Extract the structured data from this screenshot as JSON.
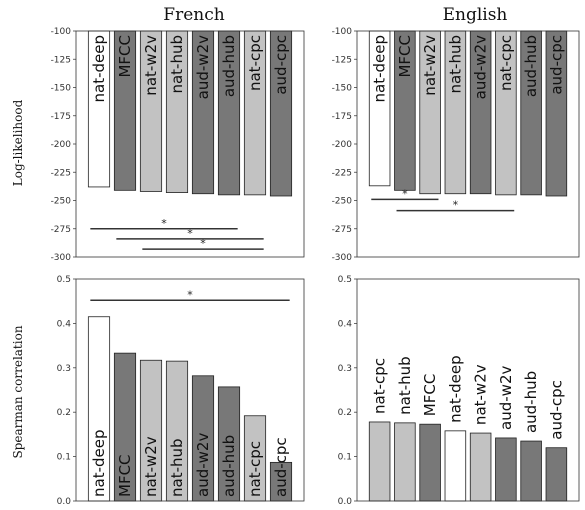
{
  "colors": {
    "white": "#ffffff",
    "light": "#c2c2c2",
    "dark": "#787878",
    "edge": "#222222",
    "sig": "#333333"
  },
  "chart_data": [
    {
      "type": "bar",
      "title": "French",
      "ylabel": "Log-likelihood",
      "ylim": [
        -300,
        -100
      ],
      "yticks": [
        "-100",
        "-125",
        "-150",
        "-175",
        "-200",
        "-225",
        "-250",
        "-275",
        "-300"
      ],
      "categories": [
        "nat-deep",
        "MFCC",
        "nat-w2v",
        "nat-hub",
        "aud-w2v",
        "aud-hub",
        "nat-cpc",
        "aud-cpc"
      ],
      "values": [
        -238,
        -241,
        -242,
        -243,
        -244,
        -245,
        -245,
        -246
      ],
      "fills": [
        "white",
        "dark",
        "light",
        "light",
        "dark",
        "dark",
        "light",
        "dark"
      ],
      "significance": [
        {
          "from": 0,
          "to": 5,
          "y": -275,
          "label": "*"
        },
        {
          "from": 1,
          "to": 6,
          "y": -284,
          "label": "*"
        },
        {
          "from": 2,
          "to": 6,
          "y": -293,
          "label": "*"
        }
      ]
    },
    {
      "type": "bar",
      "title": "English",
      "ylabel": "",
      "ylim": [
        -300,
        -100
      ],
      "yticks": [
        "-100",
        "-125",
        "-150",
        "-175",
        "-200",
        "-225",
        "-250",
        "-275",
        "-300"
      ],
      "categories": [
        "nat-deep",
        "MFCC",
        "nat-w2v",
        "nat-hub",
        "aud-w2v",
        "nat-cpc",
        "aud-hub",
        "aud-cpc"
      ],
      "values": [
        -237,
        -241,
        -244,
        -244,
        -244,
        -245,
        -245,
        -246
      ],
      "fills": [
        "white",
        "dark",
        "light",
        "light",
        "dark",
        "light",
        "dark",
        "dark"
      ],
      "significance": [
        {
          "from": 0,
          "to": 2,
          "y": -249,
          "label": "*"
        },
        {
          "from": 1,
          "to": 5,
          "y": -259,
          "label": "*"
        }
      ]
    },
    {
      "type": "bar",
      "title": "",
      "ylabel": "Spearman correlation",
      "ylim": [
        0,
        0.5
      ],
      "yticks": [
        "0.0",
        "0.1",
        "0.2",
        "0.3",
        "0.4",
        "0.5"
      ],
      "categories": [
        "nat-deep",
        "MFCC",
        "nat-w2v",
        "nat-hub",
        "aud-w2v",
        "aud-hub",
        "nat-cpc",
        "aud-cpc"
      ],
      "values": [
        0.415,
        0.333,
        0.317,
        0.315,
        0.282,
        0.257,
        0.192,
        0.087
      ],
      "fills": [
        "white",
        "dark",
        "light",
        "light",
        "dark",
        "dark",
        "light",
        "dark"
      ],
      "significance": [
        {
          "from": 0,
          "to": 7,
          "y": 0.452,
          "label": "*"
        }
      ]
    },
    {
      "type": "bar",
      "title": "",
      "ylabel": "",
      "ylim": [
        0,
        0.5
      ],
      "yticks": [
        "0.0",
        "0.1",
        "0.2",
        "0.3",
        "0.4",
        "0.5"
      ],
      "categories": [
        "nat-cpc",
        "nat-hub",
        "MFCC",
        "nat-deep",
        "nat-w2v",
        "aud-w2v",
        "aud-hub",
        "aud-cpc"
      ],
      "values": [
        0.178,
        0.176,
        0.173,
        0.158,
        0.153,
        0.142,
        0.135,
        0.12
      ],
      "fills": [
        "light",
        "light",
        "dark",
        "white",
        "light",
        "dark",
        "dark",
        "dark"
      ],
      "significance": []
    }
  ]
}
